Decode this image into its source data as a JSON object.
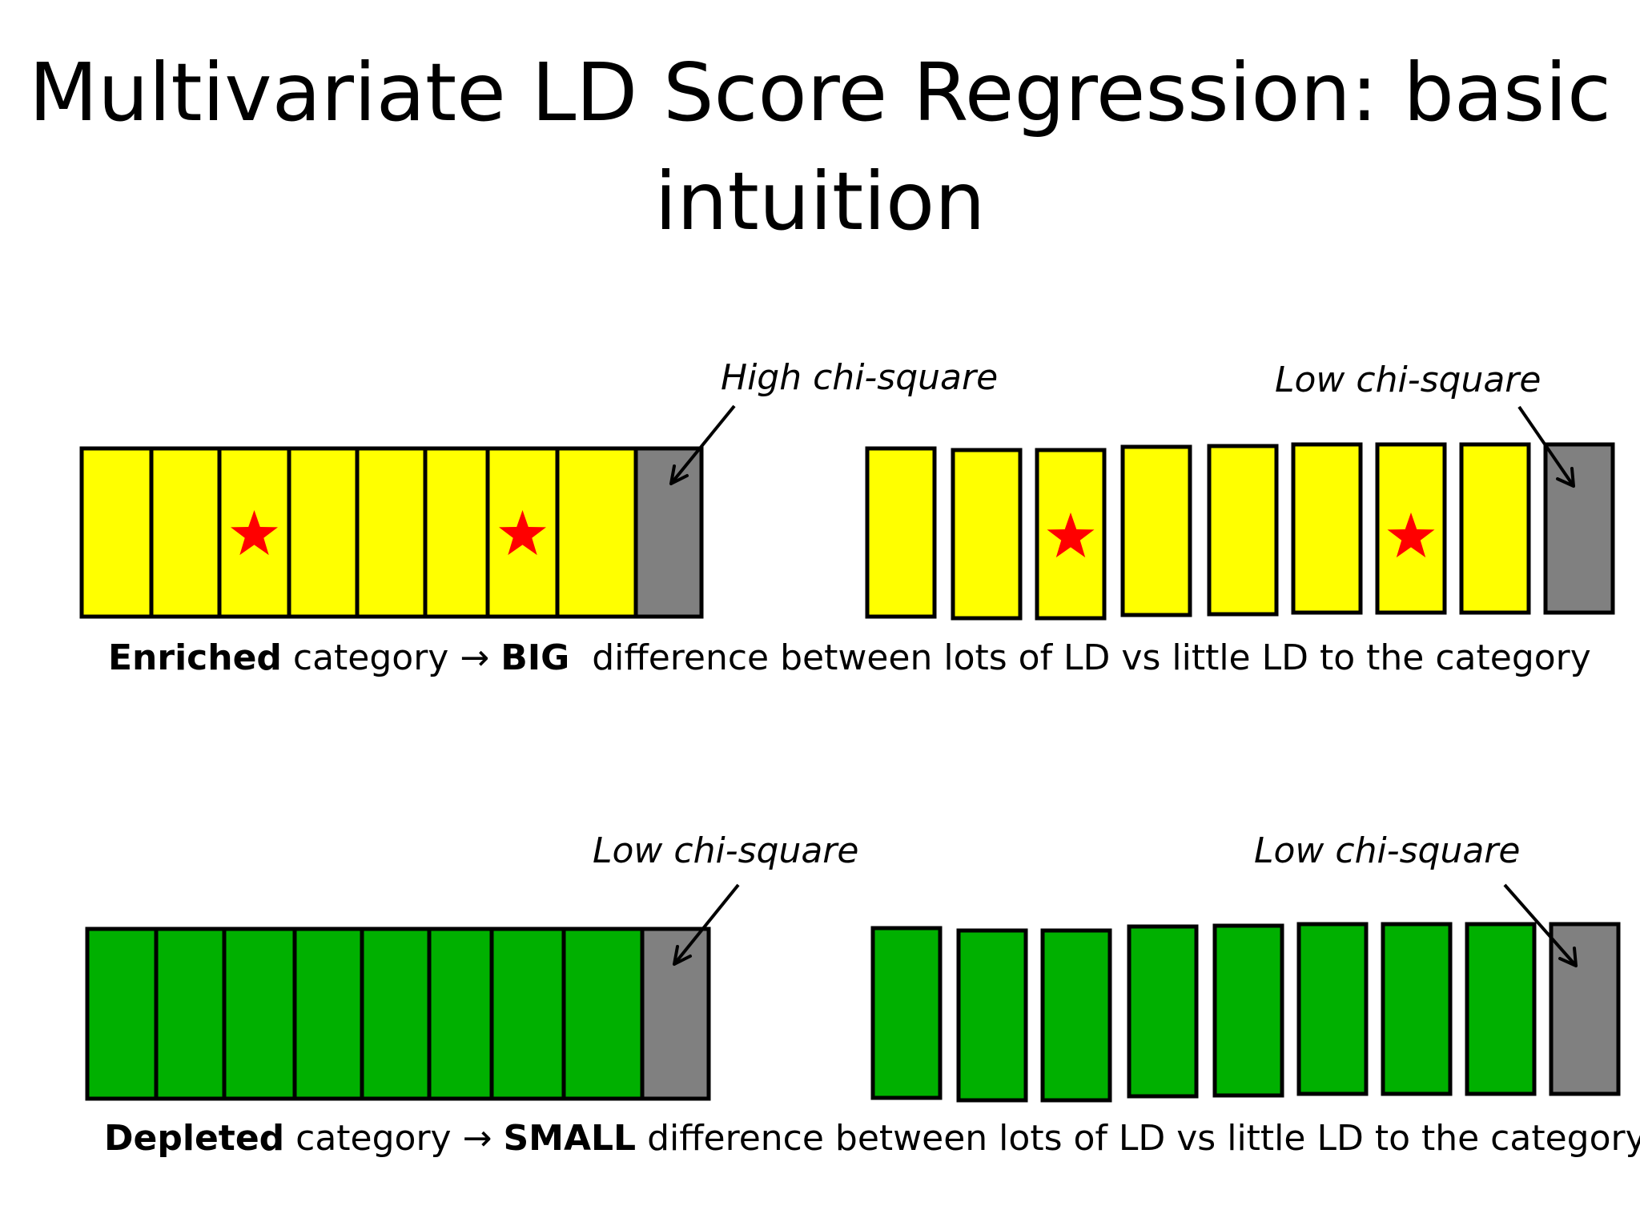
{
  "title": {
    "line1": "Multivariate LD Score Regression: basic",
    "line2": "intuition"
  },
  "colors": {
    "enriched": "#ffff00",
    "depleted": "#00b000",
    "null": "#808080",
    "star": "#ff0000",
    "outline": "#000000"
  },
  "enriched": {
    "label_left": "High chi-square",
    "label_right": "Low chi-square",
    "caption": {
      "term": "Enriched",
      "after_term": " category ",
      "arrow": "→",
      "magnitude": "BIG",
      "rest": "  difference between lots of LD vs little LD to the category"
    }
  },
  "depleted": {
    "label_left": "Low chi-square",
    "label_right": "Low chi-square",
    "caption": {
      "term": "Depleted",
      "after_term": " category ",
      "arrow": "→",
      "magnitude": "SMALL",
      "rest": " difference between lots of LD vs little LD to the category"
    }
  }
}
